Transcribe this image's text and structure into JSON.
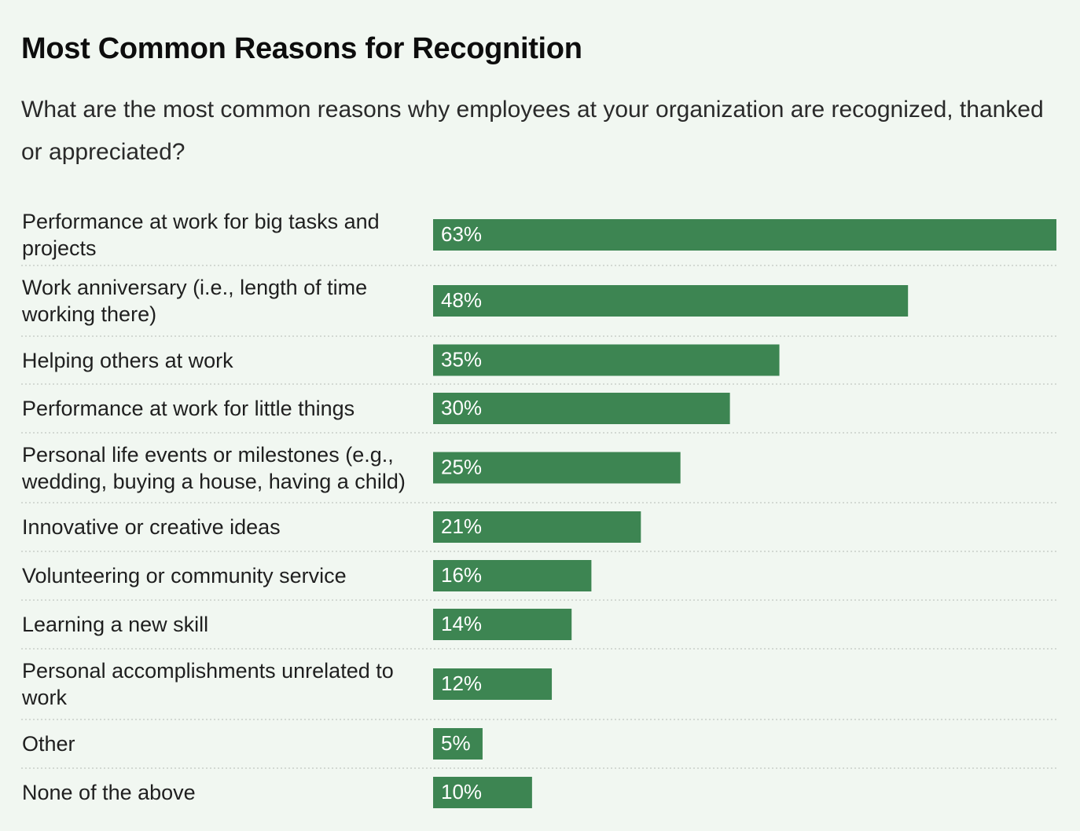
{
  "chart_data": {
    "type": "bar",
    "orientation": "horizontal",
    "title": "Most Common Reasons for Recognition",
    "subtitle": "What are the most common reasons why employees at your organization are recognized, thanked or appreciated?",
    "categories": [
      "Performance at work for big tasks and projects",
      "Work anniversary (i.e., length of time working there)",
      "Helping others at work",
      "Performance at work for little things",
      "Personal life events or milestones (e.g., wedding, buying a house, having a child)",
      "Innovative or creative ideas",
      "Volunteering or community service",
      "Learning a new skill",
      "Personal accomplishments unrelated to work",
      "Other",
      "None of the above"
    ],
    "values": [
      63,
      48,
      35,
      30,
      25,
      21,
      16,
      14,
      12,
      5,
      10
    ],
    "value_labels": [
      "63%",
      "48%",
      "35%",
      "30%",
      "25%",
      "21%",
      "16%",
      "14%",
      "12%",
      "5%",
      "10%"
    ],
    "unit": "%",
    "xlim": [
      0,
      63
    ],
    "grid": false,
    "row_separators": "dotted",
    "bar_color": "#3d8552",
    "label_color": "#ffffff",
    "background": "#f1f7f1"
  }
}
